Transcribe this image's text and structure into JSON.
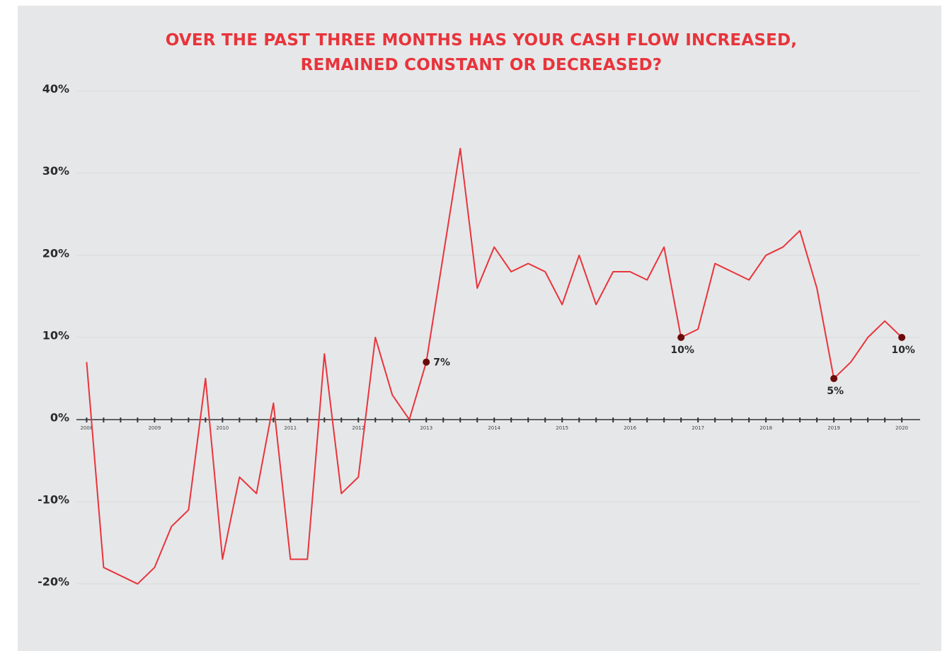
{
  "chart_data": {
    "type": "line",
    "title": "OVER THE PAST THREE MONTHS HAS YOUR CASH FLOW INCREASED, REMAINED CONSTANT OR DECREASED?",
    "x": [
      2008,
      2008.25,
      2008.5,
      2008.75,
      2009,
      2009.25,
      2009.5,
      2009.75,
      2010,
      2010.25,
      2010.5,
      2010.75,
      2011,
      2011.25,
      2011.5,
      2011.75,
      2012,
      2012.25,
      2012.5,
      2012.75,
      2013,
      2013.25,
      2013.5,
      2013.75,
      2014,
      2014.25,
      2014.5,
      2014.75,
      2015,
      2015.25,
      2015.5,
      2015.75,
      2016,
      2016.25,
      2016.5,
      2016.75,
      2017,
      2017.25,
      2017.5,
      2017.75,
      2018,
      2018.25,
      2018.5,
      2018.75,
      2019,
      2019.25,
      2019.5,
      2019.75,
      2020
    ],
    "values": [
      7,
      -18,
      -19,
      -20,
      -18,
      -13,
      -11,
      5,
      -17,
      -7,
      -9,
      2,
      -17,
      -17,
      8,
      -9,
      -7,
      10,
      3,
      0,
      7,
      20,
      33,
      16,
      21,
      18,
      19,
      18,
      14,
      20,
      14,
      18,
      18,
      17,
      21,
      10,
      11,
      19,
      18,
      17,
      20,
      21,
      23,
      16,
      5,
      7,
      10,
      12,
      10
    ],
    "value_labels": [
      null,
      null,
      null,
      null,
      null,
      null,
      null,
      null,
      null,
      null,
      null,
      null,
      null,
      null,
      null,
      null,
      null,
      null,
      null,
      null,
      "7%",
      null,
      null,
      null,
      null,
      null,
      null,
      null,
      null,
      null,
      null,
      null,
      null,
      null,
      null,
      "10%",
      null,
      null,
      null,
      null,
      null,
      null,
      null,
      null,
      "5%",
      null,
      null,
      null,
      "10%"
    ],
    "color": "#e8343b",
    "marker_color": "#6b0a0a",
    "xlim": [
      2007.85,
      2020.27
    ],
    "xticks": [
      2008,
      2009,
      2010,
      2011,
      2012,
      2013,
      2014,
      2015,
      2016,
      2017,
      2018,
      2019,
      2020
    ],
    "ylim": [
      -23,
      41
    ],
    "yticks": [
      {
        "value": -20,
        "label": "-20%"
      },
      {
        "value": -10,
        "label": "-10%"
      },
      {
        "value": 0,
        "label": "0%"
      },
      {
        "value": 10,
        "label": "10%"
      },
      {
        "value": 20,
        "label": "20%"
      },
      {
        "value": 30,
        "label": "30%"
      },
      {
        "value": 40,
        "label": "40%"
      }
    ],
    "grid": true
  }
}
